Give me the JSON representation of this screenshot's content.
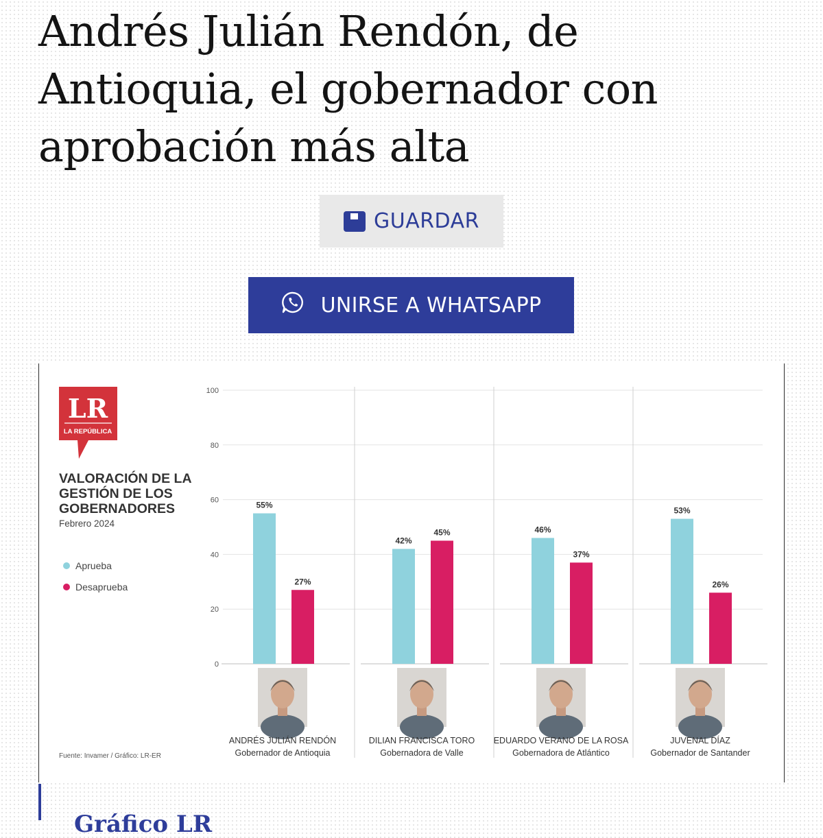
{
  "article": {
    "headline_lines": [
      "Andrés Julián Rendón, de",
      "Antioquia, el gobernador con",
      "aprobación más alta"
    ],
    "save_button": {
      "label": "GUARDAR",
      "icon": "bookmark-save-icon"
    },
    "whatsapp_button": {
      "label": "UNIRSE A WHATSAPP",
      "icon": "whatsapp-icon"
    },
    "section_heading": "Gráfico LR"
  },
  "infographic": {
    "logo": {
      "letters": "LR",
      "subtitle": "LA REPÚBLICA",
      "color": "#d3333b"
    },
    "title_lines": [
      "VALORACIÓN DE LA",
      "GESTIÓN DE LOS",
      "GOBERNADORES"
    ],
    "date": "Febrero 2024",
    "source": "Fuente: Invamer / Gráfico: LR-ER"
  },
  "chart_data": {
    "type": "bar",
    "categories": [
      "Andrés Julián Rendón",
      "Dilian Francisca Toro",
      "Eduardo Verano de la Rosa",
      "Juvenal Díaz"
    ],
    "series": [
      {
        "name": "Aprueba",
        "color": "#8fd2dd",
        "values": [
          55,
          42,
          46,
          53
        ],
        "labels": [
          "55%",
          "42%",
          "46%",
          "53%"
        ]
      },
      {
        "name": "Desaprueba",
        "color": "#d81e63",
        "values": [
          27,
          45,
          37,
          26
        ],
        "labels": [
          "27%",
          "45%",
          "37%",
          "26%"
        ]
      }
    ],
    "yticks": [
      "100",
      "80",
      "60",
      "40",
      "20",
      "0"
    ],
    "ylim": [
      0,
      100
    ],
    "grid": true,
    "legend": "left",
    "people": [
      {
        "name": "ANDRÉS JULIÁN RENDÓN",
        "role": "Gobernador de Antioquia"
      },
      {
        "name": "DILIAN FRANCISCA TORO",
        "role": "Gobernadora de Valle"
      },
      {
        "name": "EDUARDO VERANO DE LA ROSA",
        "role": "Gobernadora de Atlántico"
      },
      {
        "name": "JUVENAL DÍAZ",
        "role": "Gobernador de Santander"
      }
    ]
  }
}
